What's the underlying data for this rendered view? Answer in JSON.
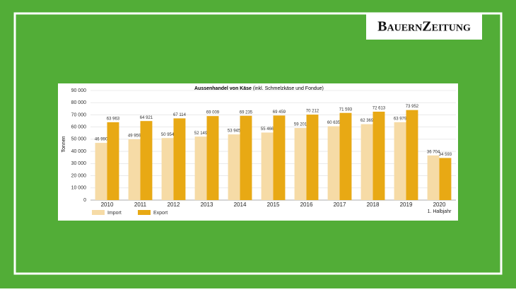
{
  "logo": "BauernZeitung",
  "chart_data": {
    "type": "bar",
    "title": "Aussenhandel von Käse",
    "subtitle": "(inkl. Schmelzkäse und Fondue)",
    "y_label": "Tonnen",
    "categories": [
      "2010",
      "2011",
      "2012",
      "2013",
      "2014",
      "2015",
      "2016",
      "2017",
      "2018",
      "2019",
      "2020"
    ],
    "category_note": "1. Halbjahr",
    "series": [
      {
        "name": "Import",
        "color": "#f6dba6",
        "values": [
          46990,
          49959,
          50954,
          52149,
          53945,
          55466,
          59201,
          60635,
          62369,
          63979,
          36704
        ],
        "value_labels": [
          "46 990",
          "49 959",
          "50 954",
          "52 149",
          "53 945",
          "55 466",
          "59 201",
          "60 635",
          "62 369",
          "63 979",
          "36 704"
        ]
      },
      {
        "name": "Export",
        "color": "#e8a914",
        "values": [
          63963,
          64921,
          67114,
          69009,
          69235,
          69459,
          70212,
          71593,
          72613,
          73952,
          34593
        ],
        "value_labels": [
          "63 963",
          "64 921",
          "67 114",
          "69 009",
          "69 235",
          "69 459",
          "70 212",
          "71 593",
          "72 613",
          "73 952",
          "34 593"
        ]
      }
    ],
    "ylim": [
      0,
      90000
    ],
    "yticks": [
      0,
      {
        "value": 10000,
        "label": "10 000"
      },
      {
        "value": 20000,
        "label": "20 000"
      },
      {
        "value": 30000,
        "label": "30 000"
      },
      {
        "value": 40000,
        "label": "40 000"
      },
      {
        "value": 50000,
        "label": "50 000"
      },
      {
        "value": 60000,
        "label": "60 000"
      },
      {
        "value": 70000,
        "label": "70 000"
      },
      {
        "value": 80000,
        "label": "80 000"
      },
      {
        "value": 90000,
        "label": "90 000"
      }
    ],
    "grid": true
  }
}
